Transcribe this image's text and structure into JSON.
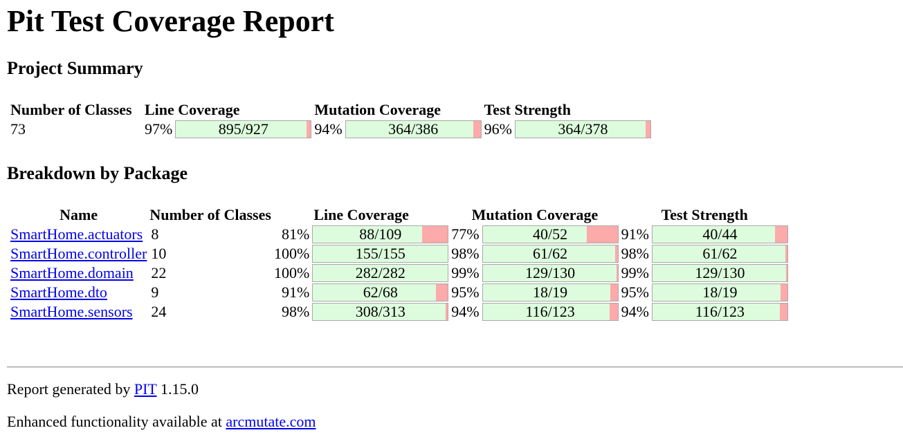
{
  "title": "Pit Test Coverage Report",
  "project_summary": {
    "heading": "Project Summary",
    "headers": {
      "classes": "Number of Classes",
      "line": "Line Coverage",
      "mutation": "Mutation Coverage",
      "strength": "Test Strength"
    },
    "number_of_classes": "73",
    "line": {
      "pct": "97%",
      "text": "895/927",
      "ratio": 0.9655
    },
    "mutation": {
      "pct": "94%",
      "text": "364/386",
      "ratio": 0.943
    },
    "strength": {
      "pct": "96%",
      "text": "364/378",
      "ratio": 0.963
    }
  },
  "breakdown": {
    "heading": "Breakdown by Package",
    "headers": {
      "name": "Name",
      "classes": "Number of Classes",
      "line": "Line Coverage",
      "mutation": "Mutation Coverage",
      "strength": "Test Strength"
    },
    "packages": [
      {
        "name": "SmartHome.actuators",
        "classes": "8",
        "line": {
          "pct": "81%",
          "text": "88/109",
          "ratio": 0.807
        },
        "mutation": {
          "pct": "77%",
          "text": "40/52",
          "ratio": 0.769
        },
        "strength": {
          "pct": "91%",
          "text": "40/44",
          "ratio": 0.909
        }
      },
      {
        "name": "SmartHome.controller",
        "classes": "10",
        "line": {
          "pct": "100%",
          "text": "155/155",
          "ratio": 1.0
        },
        "mutation": {
          "pct": "98%",
          "text": "61/62",
          "ratio": 0.984
        },
        "strength": {
          "pct": "98%",
          "text": "61/62",
          "ratio": 0.984
        }
      },
      {
        "name": "SmartHome.domain",
        "classes": "22",
        "line": {
          "pct": "100%",
          "text": "282/282",
          "ratio": 1.0
        },
        "mutation": {
          "pct": "99%",
          "text": "129/130",
          "ratio": 0.992
        },
        "strength": {
          "pct": "99%",
          "text": "129/130",
          "ratio": 0.992
        }
      },
      {
        "name": "SmartHome.dto",
        "classes": "9",
        "line": {
          "pct": "91%",
          "text": "62/68",
          "ratio": 0.912
        },
        "mutation": {
          "pct": "95%",
          "text": "18/19",
          "ratio": 0.947
        },
        "strength": {
          "pct": "95%",
          "text": "18/19",
          "ratio": 0.947
        }
      },
      {
        "name": "SmartHome.sensors",
        "classes": "24",
        "line": {
          "pct": "98%",
          "text": "308/313",
          "ratio": 0.984
        },
        "mutation": {
          "pct": "94%",
          "text": "116/123",
          "ratio": 0.943
        },
        "strength": {
          "pct": "94%",
          "text": "116/123",
          "ratio": 0.943
        }
      }
    ]
  },
  "footer": {
    "generated_prefix": "Report generated by ",
    "generated_link": "PIT",
    "generated_version": " 1.15.0",
    "enhanced_prefix": "Enhanced functionality available at ",
    "enhanced_link": "arcmutate.com"
  },
  "colors": {
    "covered": "#ddfcdd",
    "uncovered": "#fdaaaa",
    "link": "#0000ee"
  }
}
